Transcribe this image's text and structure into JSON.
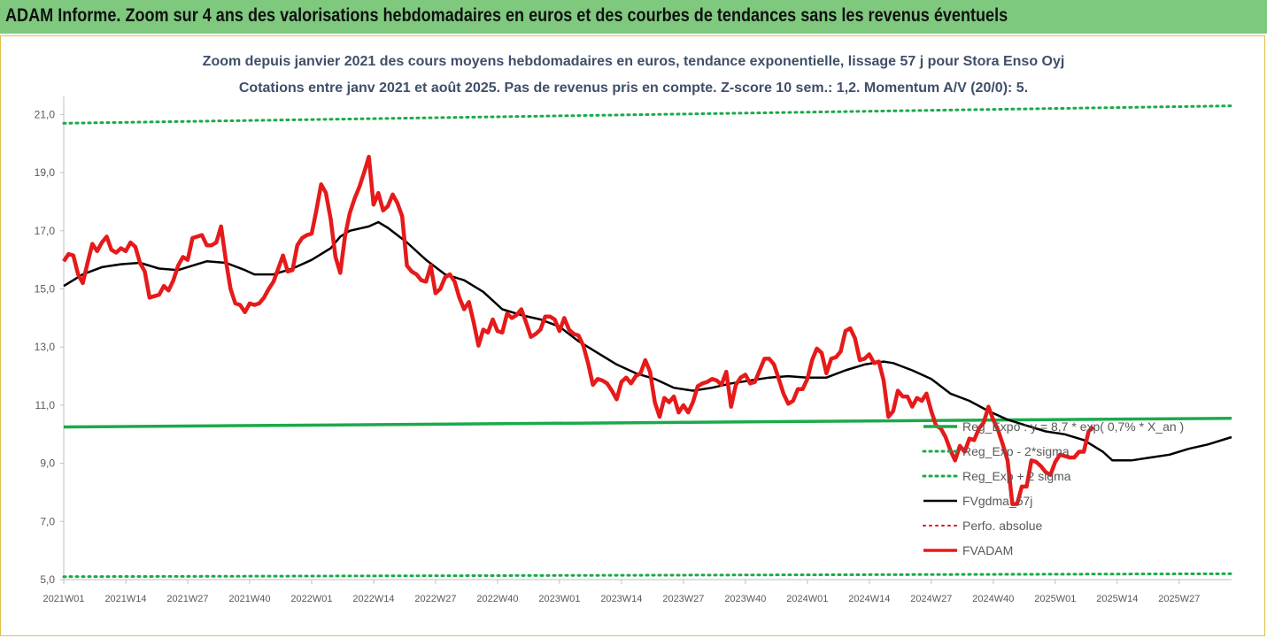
{
  "banner": {
    "title": "ADAM Informe. Zoom sur 4 ans des valorisations hebdomadaires en euros et des courbes de tendances sans les revenus éventuels"
  },
  "chart_data": {
    "type": "line",
    "title": "Zoom depuis janvier 2021 des cours moyens hebdomadaires en euros, tendance exponentielle, lissage 57 j pour Stora Enso Oyj",
    "subtitle": "Cotations entre janv 2021 et août 2025.  Pas de revenus pris en compte. Z-score 10 sem.: 1,2. Momentum A/V (20/0): 5.",
    "ylim": [
      5,
      21.5
    ],
    "y_ticks": [
      "5,0",
      "7,0",
      "9,0",
      "11,0",
      "13,0",
      "15,0",
      "17,0",
      "19,0",
      "21,0"
    ],
    "x_ticks": [
      {
        "week": 0,
        "label": "2021W01"
      },
      {
        "week": 13,
        "label": "2021W14"
      },
      {
        "week": 26,
        "label": "2021W27"
      },
      {
        "week": 39,
        "label": "2021W40"
      },
      {
        "week": 52,
        "label": "2022W01"
      },
      {
        "week": 65,
        "label": "2022W14"
      },
      {
        "week": 78,
        "label": "2022W27"
      },
      {
        "week": 91,
        "label": "2022W40"
      },
      {
        "week": 104,
        "label": "2023W01"
      },
      {
        "week": 117,
        "label": "2023W14"
      },
      {
        "week": 130,
        "label": "2023W27"
      },
      {
        "week": 143,
        "label": "2023W40"
      },
      {
        "week": 156,
        "label": "2024W01"
      },
      {
        "week": 169,
        "label": "2024W14"
      },
      {
        "week": 182,
        "label": "2024W27"
      },
      {
        "week": 195,
        "label": "2024W40"
      },
      {
        "week": 208,
        "label": "2025W01"
      },
      {
        "week": 221,
        "label": "2025W14"
      },
      {
        "week": 234,
        "label": "2025W27"
      }
    ],
    "x_range_weeks": [
      0,
      245
    ],
    "grid": false,
    "legend_position": "bottom-right",
    "series": [
      {
        "name": "Reg_Expo : y = 8,7 * exp( 0,7% *  X_an )",
        "color": "#1aaa4a",
        "style": "solid",
        "width": 3.5,
        "points": [
          [
            0,
            10.25
          ],
          [
            245,
            10.55
          ]
        ]
      },
      {
        "name": "Reg_Exp - 2*sigma",
        "color": "#1aaa4a",
        "style": "dotted",
        "width": 3,
        "points": [
          [
            0,
            5.1
          ],
          [
            245,
            5.2
          ]
        ]
      },
      {
        "name": "Reg_Exp + 2 sigma",
        "color": "#1aaa4a",
        "style": "dotted",
        "width": 3,
        "points": [
          [
            0,
            20.7
          ],
          [
            245,
            21.3
          ]
        ]
      },
      {
        "name": "FVgdma_57j",
        "color": "#000000",
        "style": "solid",
        "width": 2.5,
        "points": [
          [
            0,
            15.1
          ],
          [
            4,
            15.5
          ],
          [
            8,
            15.75
          ],
          [
            12,
            15.85
          ],
          [
            16,
            15.9
          ],
          [
            20,
            15.7
          ],
          [
            24,
            15.65
          ],
          [
            28,
            15.85
          ],
          [
            30,
            15.95
          ],
          [
            34,
            15.9
          ],
          [
            38,
            15.65
          ],
          [
            40,
            15.5
          ],
          [
            44,
            15.5
          ],
          [
            48,
            15.7
          ],
          [
            52,
            16.0
          ],
          [
            56,
            16.4
          ],
          [
            58,
            16.8
          ],
          [
            60,
            17.0
          ],
          [
            64,
            17.15
          ],
          [
            66,
            17.3
          ],
          [
            68,
            17.1
          ],
          [
            72,
            16.6
          ],
          [
            76,
            16.0
          ],
          [
            80,
            15.5
          ],
          [
            84,
            15.3
          ],
          [
            88,
            14.9
          ],
          [
            92,
            14.3
          ],
          [
            96,
            14.1
          ],
          [
            100,
            13.95
          ],
          [
            104,
            13.7
          ],
          [
            108,
            13.2
          ],
          [
            112,
            12.8
          ],
          [
            116,
            12.4
          ],
          [
            120,
            12.1
          ],
          [
            124,
            11.9
          ],
          [
            128,
            11.6
          ],
          [
            132,
            11.5
          ],
          [
            136,
            11.6
          ],
          [
            140,
            11.75
          ],
          [
            144,
            11.85
          ],
          [
            148,
            11.95
          ],
          [
            152,
            12.0
          ],
          [
            156,
            11.95
          ],
          [
            160,
            11.95
          ],
          [
            164,
            12.2
          ],
          [
            168,
            12.4
          ],
          [
            172,
            12.5
          ],
          [
            174,
            12.45
          ],
          [
            178,
            12.2
          ],
          [
            182,
            11.9
          ],
          [
            186,
            11.4
          ],
          [
            190,
            11.15
          ],
          [
            194,
            10.8
          ],
          [
            198,
            10.5
          ],
          [
            202,
            10.3
          ],
          [
            206,
            10.1
          ],
          [
            210,
            10.0
          ],
          [
            214,
            9.8
          ],
          [
            218,
            9.4
          ],
          [
            220,
            9.1
          ],
          [
            224,
            9.1
          ],
          [
            228,
            9.2
          ],
          [
            232,
            9.3
          ],
          [
            236,
            9.5
          ],
          [
            240,
            9.65
          ],
          [
            245,
            9.9
          ]
        ]
      },
      {
        "name": "Perfo. absolue",
        "color": "#e01010",
        "style": "dotted",
        "width": 2,
        "points": []
      },
      {
        "name": "FVADAM",
        "color": "#e61a1a",
        "style": "solid",
        "width": 4.5,
        "points": [
          [
            0,
            15.95
          ],
          [
            1,
            16.2
          ],
          [
            2,
            16.15
          ],
          [
            3,
            15.5
          ],
          [
            4,
            15.2
          ],
          [
            5,
            15.9
          ],
          [
            6,
            16.55
          ],
          [
            7,
            16.3
          ],
          [
            8,
            16.6
          ],
          [
            9,
            16.8
          ],
          [
            10,
            16.35
          ],
          [
            11,
            16.25
          ],
          [
            12,
            16.4
          ],
          [
            13,
            16.3
          ],
          [
            14,
            16.6
          ],
          [
            15,
            16.45
          ],
          [
            16,
            15.9
          ],
          [
            17,
            15.6
          ],
          [
            18,
            14.7
          ],
          [
            19,
            14.75
          ],
          [
            20,
            14.8
          ],
          [
            21,
            15.1
          ],
          [
            22,
            14.95
          ],
          [
            23,
            15.3
          ],
          [
            24,
            15.8
          ],
          [
            25,
            16.1
          ],
          [
            26,
            16.0
          ],
          [
            27,
            16.75
          ],
          [
            28,
            16.8
          ],
          [
            29,
            16.85
          ],
          [
            30,
            16.5
          ],
          [
            31,
            16.5
          ],
          [
            32,
            16.6
          ],
          [
            33,
            17.15
          ],
          [
            34,
            16.0
          ],
          [
            35,
            15.0
          ],
          [
            36,
            14.5
          ],
          [
            37,
            14.45
          ],
          [
            38,
            14.2
          ],
          [
            39,
            14.5
          ],
          [
            40,
            14.45
          ],
          [
            41,
            14.5
          ],
          [
            42,
            14.7
          ],
          [
            43,
            15.0
          ],
          [
            44,
            15.25
          ],
          [
            45,
            15.7
          ],
          [
            46,
            16.15
          ],
          [
            47,
            15.6
          ],
          [
            48,
            15.65
          ],
          [
            49,
            16.5
          ],
          [
            50,
            16.75
          ],
          [
            51,
            16.85
          ],
          [
            52,
            16.9
          ],
          [
            53,
            17.7
          ],
          [
            54,
            18.6
          ],
          [
            55,
            18.3
          ],
          [
            56,
            17.4
          ],
          [
            57,
            16.1
          ],
          [
            58,
            15.55
          ],
          [
            59,
            16.8
          ],
          [
            60,
            17.6
          ],
          [
            61,
            18.1
          ],
          [
            62,
            18.5
          ],
          [
            63,
            19.0
          ],
          [
            64,
            19.55
          ],
          [
            65,
            17.9
          ],
          [
            66,
            18.3
          ],
          [
            67,
            17.7
          ],
          [
            68,
            17.85
          ],
          [
            69,
            18.25
          ],
          [
            70,
            17.95
          ],
          [
            71,
            17.5
          ],
          [
            72,
            15.8
          ],
          [
            73,
            15.6
          ],
          [
            74,
            15.5
          ],
          [
            75,
            15.3
          ],
          [
            76,
            15.25
          ],
          [
            77,
            15.8
          ],
          [
            78,
            14.85
          ],
          [
            79,
            15.0
          ],
          [
            80,
            15.4
          ],
          [
            81,
            15.5
          ],
          [
            82,
            15.25
          ],
          [
            83,
            14.7
          ],
          [
            84,
            14.3
          ],
          [
            85,
            14.55
          ],
          [
            86,
            13.85
          ],
          [
            87,
            13.05
          ],
          [
            88,
            13.6
          ],
          [
            89,
            13.5
          ],
          [
            90,
            13.95
          ],
          [
            91,
            13.55
          ],
          [
            92,
            13.5
          ],
          [
            93,
            14.15
          ],
          [
            94,
            14.0
          ],
          [
            95,
            14.1
          ],
          [
            96,
            14.3
          ],
          [
            97,
            13.85
          ],
          [
            98,
            13.35
          ],
          [
            99,
            13.45
          ],
          [
            100,
            13.6
          ],
          [
            101,
            14.05
          ],
          [
            102,
            14.05
          ],
          [
            103,
            13.95
          ],
          [
            104,
            13.55
          ],
          [
            105,
            14.0
          ],
          [
            106,
            13.6
          ],
          [
            107,
            13.45
          ],
          [
            108,
            13.4
          ],
          [
            109,
            13.05
          ],
          [
            110,
            12.45
          ],
          [
            111,
            11.7
          ],
          [
            112,
            11.9
          ],
          [
            113,
            11.85
          ],
          [
            114,
            11.75
          ],
          [
            115,
            11.5
          ],
          [
            116,
            11.2
          ],
          [
            117,
            11.8
          ],
          [
            118,
            11.95
          ],
          [
            119,
            11.75
          ],
          [
            120,
            12.0
          ],
          [
            121,
            12.1
          ],
          [
            122,
            12.55
          ],
          [
            123,
            12.15
          ],
          [
            124,
            11.1
          ],
          [
            125,
            10.6
          ],
          [
            126,
            11.25
          ],
          [
            127,
            11.1
          ],
          [
            128,
            11.3
          ],
          [
            129,
            10.75
          ],
          [
            130,
            11.0
          ],
          [
            131,
            10.75
          ],
          [
            132,
            11.1
          ],
          [
            133,
            11.65
          ],
          [
            134,
            11.75
          ],
          [
            135,
            11.8
          ],
          [
            136,
            11.9
          ],
          [
            137,
            11.85
          ],
          [
            138,
            11.7
          ],
          [
            139,
            12.15
          ],
          [
            140,
            10.95
          ],
          [
            141,
            11.7
          ],
          [
            142,
            11.95
          ],
          [
            143,
            12.05
          ],
          [
            144,
            11.75
          ],
          [
            145,
            11.8
          ],
          [
            146,
            12.2
          ],
          [
            147,
            12.6
          ],
          [
            148,
            12.6
          ],
          [
            149,
            12.4
          ],
          [
            150,
            11.9
          ],
          [
            151,
            11.4
          ],
          [
            152,
            11.05
          ],
          [
            153,
            11.15
          ],
          [
            154,
            11.55
          ],
          [
            155,
            11.55
          ],
          [
            156,
            11.9
          ],
          [
            157,
            12.55
          ],
          [
            158,
            12.95
          ],
          [
            159,
            12.8
          ],
          [
            160,
            12.1
          ],
          [
            161,
            12.6
          ],
          [
            162,
            12.65
          ],
          [
            163,
            12.85
          ],
          [
            164,
            13.55
          ],
          [
            165,
            13.65
          ],
          [
            166,
            13.3
          ],
          [
            167,
            12.55
          ],
          [
            168,
            12.6
          ],
          [
            169,
            12.75
          ],
          [
            170,
            12.45
          ],
          [
            171,
            12.5
          ],
          [
            172,
            11.85
          ],
          [
            173,
            10.6
          ],
          [
            174,
            10.8
          ],
          [
            175,
            11.5
          ],
          [
            176,
            11.3
          ],
          [
            177,
            11.3
          ],
          [
            178,
            10.95
          ],
          [
            179,
            11.25
          ],
          [
            180,
            11.15
          ],
          [
            181,
            11.4
          ],
          [
            182,
            10.8
          ],
          [
            183,
            10.3
          ],
          [
            184,
            10.2
          ],
          [
            185,
            9.9
          ],
          [
            186,
            9.45
          ],
          [
            187,
            9.1
          ],
          [
            188,
            9.6
          ],
          [
            189,
            9.4
          ],
          [
            190,
            9.85
          ],
          [
            191,
            9.8
          ],
          [
            192,
            10.2
          ],
          [
            193,
            10.4
          ],
          [
            194,
            10.95
          ],
          [
            195,
            10.5
          ],
          [
            196,
            10.15
          ],
          [
            197,
            9.65
          ],
          [
            198,
            9.1
          ],
          [
            199,
            7.6
          ],
          [
            200,
            7.6
          ],
          [
            201,
            8.2
          ],
          [
            202,
            8.2
          ],
          [
            203,
            9.1
          ],
          [
            204,
            9.05
          ],
          [
            205,
            8.9
          ],
          [
            206,
            8.7
          ],
          [
            207,
            8.6
          ],
          [
            208,
            9.05
          ],
          [
            209,
            9.3
          ],
          [
            210,
            9.25
          ],
          [
            211,
            9.2
          ],
          [
            212,
            9.2
          ],
          [
            213,
            9.4
          ],
          [
            214,
            9.4
          ],
          [
            215,
            10.1
          ],
          [
            216,
            10.25
          ]
        ]
      }
    ]
  }
}
